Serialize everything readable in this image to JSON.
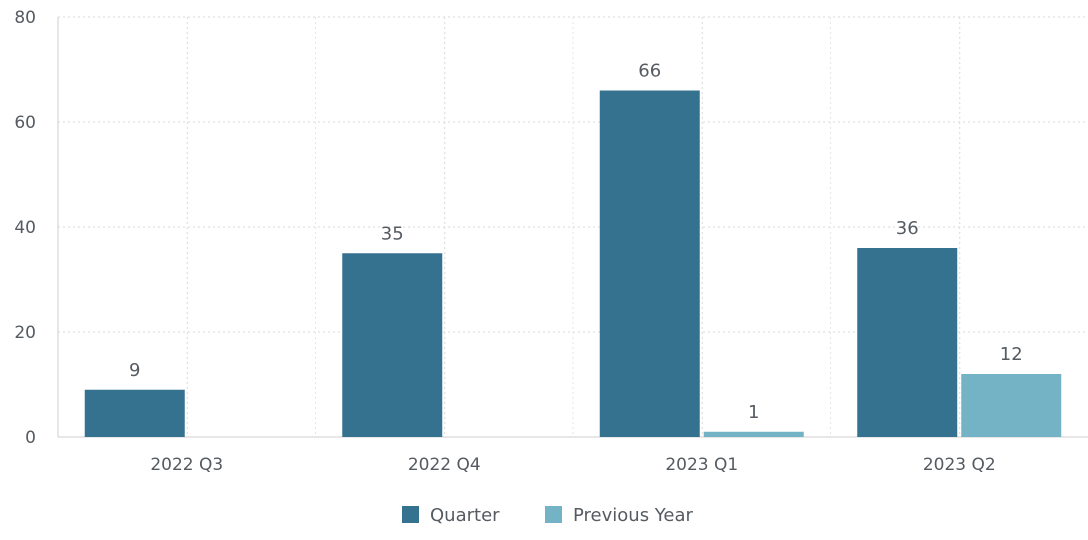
{
  "chart_data": {
    "type": "bar",
    "title": "",
    "xlabel": "",
    "ylabel": "",
    "categories": [
      "2022 Q3",
      "2022 Q4",
      "2023 Q1",
      "2023 Q2"
    ],
    "series": [
      {
        "name": "Quarter",
        "values": [
          9,
          35,
          66,
          36
        ],
        "color": "#35728f"
      },
      {
        "name": "Previous Year",
        "values": [
          null,
          null,
          1,
          12
        ],
        "color": "#74b3c6"
      }
    ],
    "ylim": [
      0,
      80
    ],
    "yticks": [
      0,
      20,
      40,
      60,
      80
    ],
    "grid": true,
    "legend_position": "bottom-center",
    "data_labels": true
  }
}
